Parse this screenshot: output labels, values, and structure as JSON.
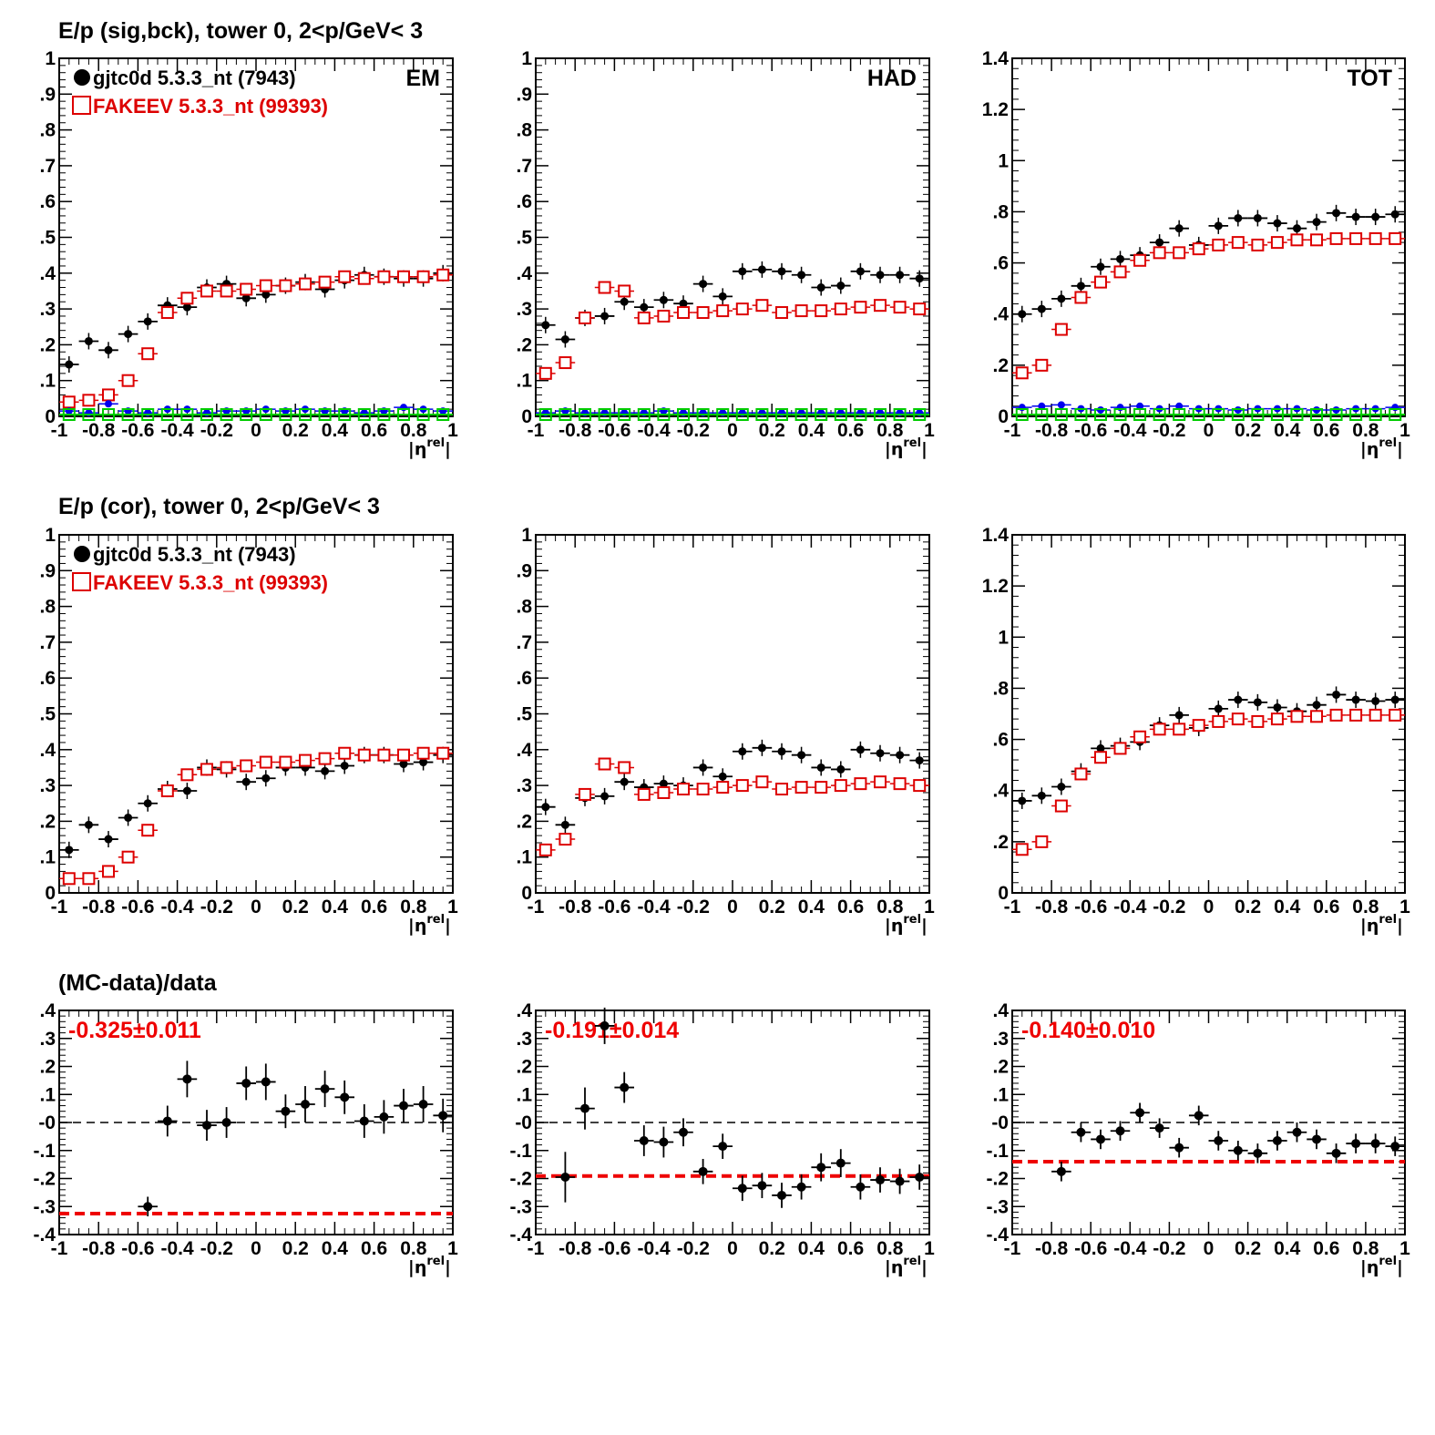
{
  "row_titles": [
    "E/p (sig,bck), tower 0,  2<p/GeV< 3",
    "E/p (cor), tower 0,  2<p/GeV< 3",
    "(MC-data)/data"
  ],
  "legend": {
    "data": "gjtc0d 5.3.3_nt (7943)",
    "mc": "FAKEEV 5.3.3_nt (99393)"
  },
  "x_axis_label": "|ηrel|",
  "colors": {
    "data": "#000000",
    "mc": "#dd0000",
    "bck_data": "#0000ee",
    "bck_mc": "#00cc00",
    "fit": "#ee0000"
  },
  "chart_data": [
    {
      "id": "p1",
      "type": "scatter",
      "row": 0,
      "col": 0,
      "label": "EM",
      "ylim": [
        0,
        1
      ],
      "yticks": [
        0,
        0.1,
        0.2,
        0.3,
        0.4,
        0.5,
        0.6,
        0.7,
        0.8,
        0.9,
        1
      ],
      "xlim": [
        -1,
        1
      ],
      "xticks": [
        -1,
        -0.8,
        -0.6,
        -0.4,
        -0.2,
        0,
        0.2,
        0.4,
        0.6,
        0.8,
        1
      ],
      "show_legend": true,
      "x": [
        -0.95,
        -0.85,
        -0.75,
        -0.65,
        -0.55,
        -0.45,
        -0.35,
        -0.25,
        -0.15,
        -0.05,
        0.05,
        0.15,
        0.25,
        0.35,
        0.45,
        0.55,
        0.65,
        0.75,
        0.85,
        0.95
      ],
      "series": [
        {
          "name": "gjtc0d 5.3.3_nt (7943)",
          "style": "data",
          "values": [
            0.145,
            0.21,
            0.185,
            0.23,
            0.265,
            0.31,
            0.305,
            0.36,
            0.37,
            0.33,
            0.34,
            0.365,
            0.375,
            0.355,
            0.38,
            0.395,
            0.39,
            0.385,
            0.385,
            0.4
          ]
        },
        {
          "name": "FAKEEV 5.3.3_nt (99393)",
          "style": "mc",
          "values": [
            0.04,
            0.045,
            0.06,
            0.1,
            0.175,
            0.29,
            0.33,
            0.35,
            0.35,
            0.355,
            0.365,
            0.365,
            0.37,
            0.375,
            0.39,
            0.385,
            0.39,
            0.39,
            0.39,
            0.395
          ]
        },
        {
          "style": "bck_data",
          "values": [
            0.015,
            0.01,
            0.035,
            0.015,
            0.01,
            0.02,
            0.02,
            0.01,
            0.015,
            0.015,
            0.02,
            0.015,
            0.02,
            0.015,
            0.015,
            0.01,
            0.015,
            0.025,
            0.02,
            0.015
          ]
        },
        {
          "style": "bck_mc",
          "values": [
            0,
            0,
            0,
            0,
            0,
            0,
            0,
            0,
            0,
            0,
            0,
            0,
            0,
            0,
            0,
            0,
            0,
            0,
            0,
            0
          ]
        }
      ]
    },
    {
      "id": "p2",
      "type": "scatter",
      "row": 0,
      "col": 1,
      "label": "HAD",
      "ylim": [
        0,
        1
      ],
      "yticks": [
        0,
        0.1,
        0.2,
        0.3,
        0.4,
        0.5,
        0.6,
        0.7,
        0.8,
        0.9,
        1
      ],
      "xlim": [
        -1,
        1
      ],
      "xticks": [
        -1,
        -0.8,
        -0.6,
        -0.4,
        -0.2,
        0,
        0.2,
        0.4,
        0.6,
        0.8,
        1
      ],
      "x": [
        -0.95,
        -0.85,
        -0.75,
        -0.65,
        -0.55,
        -0.45,
        -0.35,
        -0.25,
        -0.15,
        -0.05,
        0.05,
        0.15,
        0.25,
        0.35,
        0.45,
        0.55,
        0.65,
        0.75,
        0.85,
        0.95
      ],
      "series": [
        {
          "style": "data",
          "values": [
            0.255,
            0.215,
            0.275,
            0.28,
            0.32,
            0.305,
            0.325,
            0.315,
            0.37,
            0.335,
            0.405,
            0.41,
            0.405,
            0.395,
            0.36,
            0.365,
            0.405,
            0.395,
            0.395,
            0.385
          ]
        },
        {
          "style": "mc",
          "values": [
            0.12,
            0.15,
            0.275,
            0.36,
            0.35,
            0.275,
            0.28,
            0.29,
            0.29,
            0.295,
            0.3,
            0.31,
            0.29,
            0.295,
            0.295,
            0.3,
            0.305,
            0.31,
            0.305,
            0.3
          ]
        },
        {
          "style": "bck_data",
          "values": [
            0.01,
            0.015,
            0.01,
            0.01,
            0.01,
            0.01,
            0.015,
            0.01,
            0.01,
            0.01,
            0.01,
            0.01,
            0.01,
            0.01,
            0.01,
            0.01,
            0.01,
            0.01,
            0.01,
            0.01
          ]
        },
        {
          "style": "bck_mc",
          "values": [
            0,
            0,
            0,
            0,
            0,
            0,
            0,
            0,
            0,
            0,
            0,
            0,
            0,
            0,
            0,
            0,
            0,
            0,
            0,
            0
          ]
        }
      ]
    },
    {
      "id": "p3",
      "type": "scatter",
      "row": 0,
      "col": 2,
      "label": "TOT",
      "ylim": [
        0,
        1.4
      ],
      "yticks": [
        0,
        0.2,
        0.4,
        0.6,
        0.8,
        1,
        1.2,
        1.4
      ],
      "xlim": [
        -1,
        1
      ],
      "xticks": [
        -1,
        -0.8,
        -0.6,
        -0.4,
        -0.2,
        0,
        0.2,
        0.4,
        0.6,
        0.8,
        1
      ],
      "x": [
        -0.95,
        -0.85,
        -0.75,
        -0.65,
        -0.55,
        -0.45,
        -0.35,
        -0.25,
        -0.15,
        -0.05,
        0.05,
        0.15,
        0.25,
        0.35,
        0.45,
        0.55,
        0.65,
        0.75,
        0.85,
        0.95
      ],
      "series": [
        {
          "style": "data",
          "values": [
            0.4,
            0.42,
            0.46,
            0.51,
            0.585,
            0.615,
            0.63,
            0.68,
            0.735,
            0.67,
            0.745,
            0.775,
            0.775,
            0.755,
            0.735,
            0.76,
            0.795,
            0.78,
            0.78,
            0.79
          ]
        },
        {
          "style": "mc",
          "values": [
            0.17,
            0.2,
            0.34,
            0.465,
            0.525,
            0.565,
            0.61,
            0.64,
            0.64,
            0.655,
            0.67,
            0.68,
            0.67,
            0.68,
            0.69,
            0.69,
            0.695,
            0.695,
            0.695,
            0.695
          ]
        },
        {
          "style": "bck_data",
          "values": [
            0.035,
            0.04,
            0.045,
            0.03,
            0.025,
            0.035,
            0.04,
            0.03,
            0.04,
            0.03,
            0.03,
            0.025,
            0.03,
            0.03,
            0.03,
            0.025,
            0.025,
            0.03,
            0.03,
            0.035
          ]
        },
        {
          "style": "bck_mc",
          "values": [
            0,
            0,
            0,
            0,
            0,
            0,
            0,
            0,
            0,
            0,
            0,
            0,
            0,
            0,
            0,
            0,
            0,
            0,
            0,
            0
          ]
        }
      ]
    },
    {
      "id": "p4",
      "type": "scatter",
      "row": 1,
      "col": 0,
      "ylim": [
        0,
        1
      ],
      "yticks": [
        0,
        0.1,
        0.2,
        0.3,
        0.4,
        0.5,
        0.6,
        0.7,
        0.8,
        0.9,
        1
      ],
      "xlim": [
        -1,
        1
      ],
      "xticks": [
        -1,
        -0.8,
        -0.6,
        -0.4,
        -0.2,
        0,
        0.2,
        0.4,
        0.6,
        0.8,
        1
      ],
      "show_legend": true,
      "x": [
        -0.95,
        -0.85,
        -0.75,
        -0.65,
        -0.55,
        -0.45,
        -0.35,
        -0.25,
        -0.15,
        -0.05,
        0.05,
        0.15,
        0.25,
        0.35,
        0.45,
        0.55,
        0.65,
        0.75,
        0.85,
        0.95
      ],
      "series": [
        {
          "style": "data",
          "values": [
            0.12,
            0.19,
            0.15,
            0.21,
            0.25,
            0.29,
            0.285,
            0.35,
            0.345,
            0.31,
            0.32,
            0.35,
            0.35,
            0.34,
            0.355,
            0.385,
            0.385,
            0.36,
            0.365,
            0.385
          ]
        },
        {
          "style": "mc",
          "values": [
            0.04,
            0.04,
            0.06,
            0.1,
            0.175,
            0.285,
            0.33,
            0.345,
            0.35,
            0.355,
            0.365,
            0.365,
            0.37,
            0.375,
            0.39,
            0.385,
            0.385,
            0.385,
            0.39,
            0.39
          ]
        }
      ]
    },
    {
      "id": "p5",
      "type": "scatter",
      "row": 1,
      "col": 1,
      "ylim": [
        0,
        1
      ],
      "yticks": [
        0,
        0.1,
        0.2,
        0.3,
        0.4,
        0.5,
        0.6,
        0.7,
        0.8,
        0.9,
        1
      ],
      "xlim": [
        -1,
        1
      ],
      "xticks": [
        -1,
        -0.8,
        -0.6,
        -0.4,
        -0.2,
        0,
        0.2,
        0.4,
        0.6,
        0.8,
        1
      ],
      "x": [
        -0.95,
        -0.85,
        -0.75,
        -0.65,
        -0.55,
        -0.45,
        -0.35,
        -0.25,
        -0.15,
        -0.05,
        0.05,
        0.15,
        0.25,
        0.35,
        0.45,
        0.55,
        0.65,
        0.75,
        0.85,
        0.95
      ],
      "series": [
        {
          "style": "data",
          "values": [
            0.24,
            0.19,
            0.265,
            0.27,
            0.31,
            0.295,
            0.305,
            0.3,
            0.35,
            0.325,
            0.395,
            0.405,
            0.395,
            0.385,
            0.35,
            0.345,
            0.4,
            0.39,
            0.385,
            0.37
          ]
        },
        {
          "style": "mc",
          "values": [
            0.12,
            0.15,
            0.275,
            0.36,
            0.35,
            0.275,
            0.28,
            0.29,
            0.29,
            0.295,
            0.3,
            0.31,
            0.29,
            0.295,
            0.295,
            0.3,
            0.305,
            0.31,
            0.305,
            0.3
          ]
        }
      ]
    },
    {
      "id": "p6",
      "type": "scatter",
      "row": 1,
      "col": 2,
      "ylim": [
        0,
        1.4
      ],
      "yticks": [
        0,
        0.2,
        0.4,
        0.6,
        0.8,
        1,
        1.2,
        1.4
      ],
      "xlim": [
        -1,
        1
      ],
      "xticks": [
        -1,
        -0.8,
        -0.6,
        -0.4,
        -0.2,
        0,
        0.2,
        0.4,
        0.6,
        0.8,
        1
      ],
      "x": [
        -0.95,
        -0.85,
        -0.75,
        -0.65,
        -0.55,
        -0.45,
        -0.35,
        -0.25,
        -0.15,
        -0.05,
        0.05,
        0.15,
        0.25,
        0.35,
        0.45,
        0.55,
        0.65,
        0.75,
        0.85,
        0.95
      ],
      "series": [
        {
          "style": "data",
          "values": [
            0.36,
            0.38,
            0.415,
            0.475,
            0.565,
            0.575,
            0.59,
            0.655,
            0.695,
            0.645,
            0.72,
            0.755,
            0.745,
            0.725,
            0.71,
            0.735,
            0.775,
            0.755,
            0.75,
            0.755
          ]
        },
        {
          "style": "mc",
          "values": [
            0.17,
            0.2,
            0.34,
            0.465,
            0.53,
            0.565,
            0.61,
            0.64,
            0.64,
            0.655,
            0.67,
            0.68,
            0.67,
            0.68,
            0.69,
            0.69,
            0.695,
            0.695,
            0.695,
            0.695
          ]
        }
      ]
    },
    {
      "id": "p7",
      "type": "scatter",
      "row": 2,
      "col": 0,
      "ylim": [
        -0.4,
        0.4
      ],
      "yticks": [
        -0.4,
        -0.3,
        -0.2,
        -0.1,
        0,
        0.1,
        0.2,
        0.3,
        0.4
      ],
      "xlim": [
        -1,
        1
      ],
      "xticks": [
        -1,
        -0.8,
        -0.6,
        -0.4,
        -0.2,
        0,
        0.2,
        0.4,
        0.6,
        0.8,
        1
      ],
      "fit_label": "-0.325±0.011",
      "fit_value": -0.325,
      "x": [
        -0.55,
        -0.45,
        -0.35,
        -0.25,
        -0.15,
        -0.05,
        0.05,
        0.15,
        0.25,
        0.35,
        0.45,
        0.55,
        0.65,
        0.75,
        0.85,
        0.95
      ],
      "series": [
        {
          "style": "ratio",
          "values": [
            -0.3,
            0.005,
            0.155,
            -0.01,
            0,
            0.14,
            0.145,
            0.04,
            0.065,
            0.12,
            0.09,
            0.005,
            0.02,
            0.06,
            0.065,
            0.025
          ],
          "errors": [
            0.035,
            0.055,
            0.065,
            0.055,
            0.055,
            0.06,
            0.065,
            0.06,
            0.065,
            0.065,
            0.06,
            0.06,
            0.06,
            0.06,
            0.065,
            0.06
          ]
        }
      ]
    },
    {
      "id": "p8",
      "type": "scatter",
      "row": 2,
      "col": 1,
      "ylim": [
        -0.4,
        0.4
      ],
      "yticks": [
        -0.4,
        -0.3,
        -0.2,
        -0.1,
        0,
        0.1,
        0.2,
        0.3,
        0.4
      ],
      "xlim": [
        -1,
        1
      ],
      "xticks": [
        -1,
        -0.8,
        -0.6,
        -0.4,
        -0.2,
        0,
        0.2,
        0.4,
        0.6,
        0.8,
        1
      ],
      "fit_label": "-0.191±0.014",
      "fit_value": -0.191,
      "x": [
        -0.85,
        -0.75,
        -0.65,
        -0.55,
        -0.45,
        -0.35,
        -0.25,
        -0.15,
        -0.05,
        0.05,
        0.15,
        0.25,
        0.35,
        0.45,
        0.55,
        0.65,
        0.75,
        0.85,
        0.95
      ],
      "series": [
        {
          "style": "ratio",
          "values": [
            -0.195,
            0.05,
            0.345,
            0.125,
            -0.065,
            -0.07,
            -0.035,
            -0.175,
            -0.085,
            -0.235,
            -0.225,
            -0.26,
            -0.23,
            -0.16,
            -0.145,
            -0.23,
            -0.205,
            -0.21,
            -0.195
          ],
          "errors": [
            0.09,
            0.075,
            0.065,
            0.055,
            0.055,
            0.055,
            0.05,
            0.045,
            0.045,
            0.045,
            0.045,
            0.045,
            0.045,
            0.05,
            0.05,
            0.045,
            0.045,
            0.045,
            0.045
          ]
        }
      ]
    },
    {
      "id": "p9",
      "type": "scatter",
      "row": 2,
      "col": 2,
      "ylim": [
        -0.4,
        0.4
      ],
      "yticks": [
        -0.4,
        -0.3,
        -0.2,
        -0.1,
        0,
        0.1,
        0.2,
        0.3,
        0.4
      ],
      "xlim": [
        -1,
        1
      ],
      "xticks": [
        -1,
        -0.8,
        -0.6,
        -0.4,
        -0.2,
        0,
        0.2,
        0.4,
        0.6,
        0.8,
        1
      ],
      "fit_label": "-0.140±0.010",
      "fit_value": -0.14,
      "x": [
        -0.75,
        -0.65,
        -0.55,
        -0.45,
        -0.35,
        -0.25,
        -0.15,
        -0.05,
        0.05,
        0.15,
        0.25,
        0.35,
        0.45,
        0.55,
        0.65,
        0.75,
        0.85,
        0.95
      ],
      "series": [
        {
          "style": "ratio",
          "values": [
            -0.175,
            -0.035,
            -0.06,
            -0.03,
            0.035,
            -0.02,
            -0.09,
            0.025,
            -0.065,
            -0.1,
            -0.11,
            -0.065,
            -0.035,
            -0.06,
            -0.11,
            -0.075,
            -0.075,
            -0.085
          ],
          "errors": [
            0.035,
            0.035,
            0.035,
            0.035,
            0.035,
            0.035,
            0.035,
            0.035,
            0.035,
            0.035,
            0.035,
            0.035,
            0.035,
            0.035,
            0.035,
            0.035,
            0.035,
            0.035
          ]
        }
      ]
    }
  ]
}
